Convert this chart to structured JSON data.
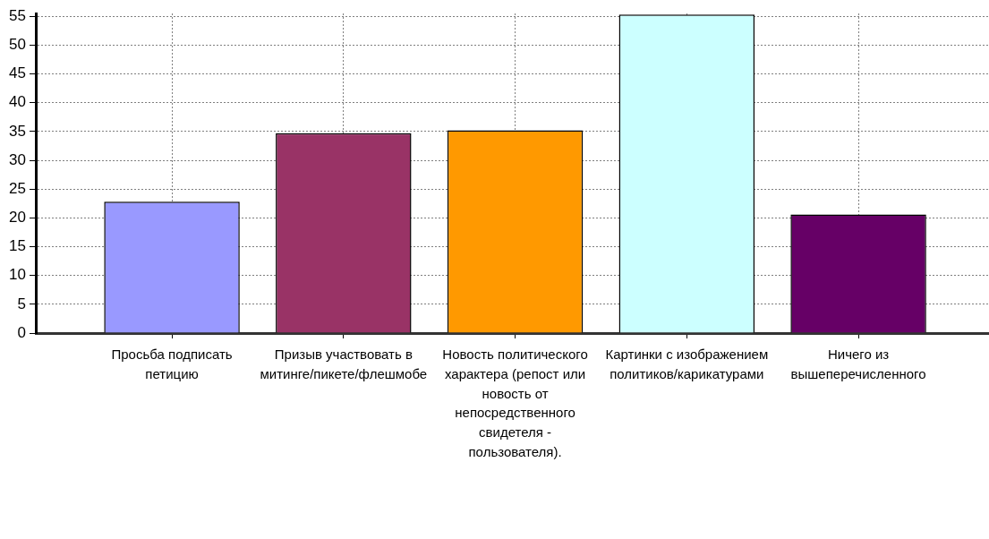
{
  "chart_data": {
    "type": "bar",
    "categories": [
      "Просьба подписать петицию",
      "Призыв участвовать в митинге/пикете/флешмобе",
      "Новость политического характера (репост или новость от непосредственного свидетеля - пользователя).",
      "Картинки с изображением политиков/карикатурами",
      "Ничего из вышеперечисленного"
    ],
    "values": [
      22.8,
      34.7,
      35.2,
      55.3,
      20.6
    ],
    "colors": [
      "#9999ff",
      "#993366",
      "#ff9900",
      "#ccffff",
      "#660066"
    ],
    "ylim": [
      0,
      55.5
    ],
    "yticks": [
      0,
      5,
      10,
      15,
      20,
      25,
      30,
      35,
      40,
      45,
      50,
      55
    ],
    "grid": true
  }
}
